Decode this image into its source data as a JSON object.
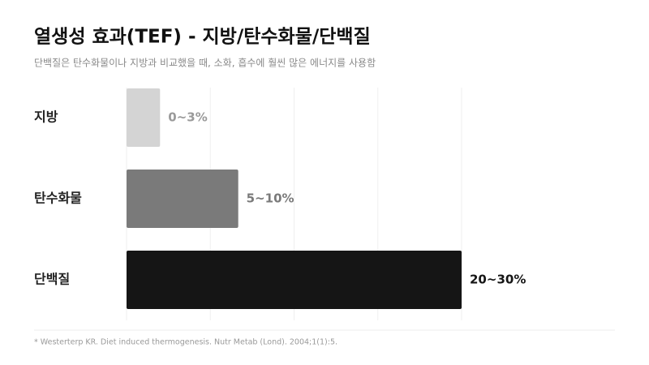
{
  "chart_data": {
    "type": "bar",
    "orientation": "horizontal",
    "title": "열생성 효과(TEF) - 지방/탄수화물/단백질",
    "subtitle": "단백질은 탄수화물이나 지방과 비교했을 때, 소화, 흡수에 훨씬 많은 에너지를 사용함",
    "categories": [
      "지방",
      "탄수화물",
      "단백질"
    ],
    "values": [
      3,
      10,
      30
    ],
    "value_labels": [
      "0~3%",
      "5~10%",
      "20~30%"
    ],
    "colors": [
      "#d4d4d4",
      "#7a7a7a",
      "#151515"
    ],
    "label_colors": [
      "#9a9a9a",
      "#7a7a7a",
      "#151515"
    ],
    "xlim": [
      0,
      30
    ],
    "xticks": [
      0,
      7.5,
      15,
      22.5,
      30
    ],
    "grid": true,
    "footnote": "* Westerterp KR. Diet induced thermogenesis. Nutr Metab (Lond). 2004;1(1):5."
  }
}
